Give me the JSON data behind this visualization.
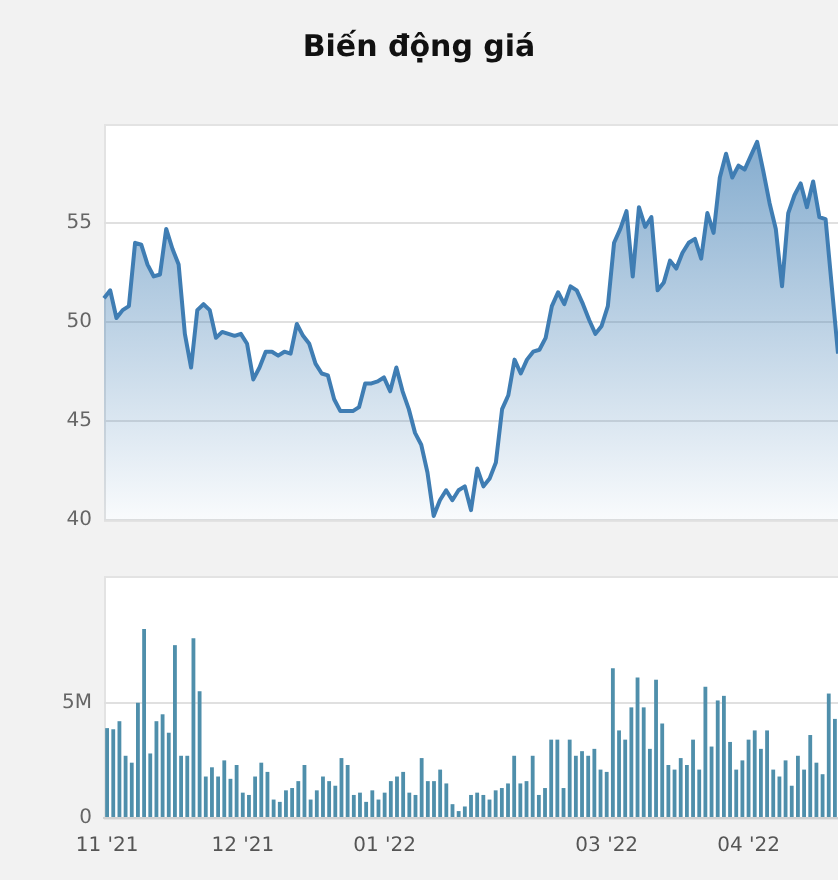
{
  "chart_data": [
    {
      "type": "area",
      "title": "Biến động giá",
      "categories": [
        null,
        null,
        null,
        null,
        null,
        null,
        null,
        null,
        null,
        null,
        null,
        null,
        null,
        null,
        null,
        null,
        null,
        null,
        null,
        null,
        null,
        null,
        null,
        null,
        null,
        null,
        null,
        null,
        null,
        null,
        null,
        null,
        null,
        null,
        null,
        null,
        null,
        null,
        null,
        null,
        null,
        null,
        null,
        null,
        null,
        null,
        null,
        null,
        null,
        null,
        null,
        null,
        null,
        null,
        null,
        null,
        null,
        null,
        null,
        null,
        null,
        null,
        null,
        null,
        null,
        null,
        null,
        null,
        null,
        null,
        null,
        null,
        null,
        null,
        null,
        null,
        null,
        null,
        null,
        null,
        null,
        null,
        null,
        null,
        null,
        null,
        null,
        null,
        null,
        null,
        null,
        null,
        null,
        null,
        null,
        null,
        null,
        null,
        null,
        null,
        null,
        null,
        null,
        null,
        null,
        null,
        null,
        null,
        null,
        null,
        null,
        null,
        null,
        null,
        null,
        null,
        null,
        null,
        null
      ],
      "series": [
        {
          "color": "#3f7db3",
          "values": [
            51.2,
            51.6,
            50.2,
            50.6,
            50.8,
            54.0,
            53.9,
            52.9,
            52.3,
            52.4,
            54.7,
            53.7,
            52.9,
            49.4,
            47.7,
            50.6,
            50.9,
            50.6,
            49.2,
            49.5,
            49.4,
            49.3,
            49.4,
            48.9,
            47.1,
            47.7,
            48.5,
            48.5,
            48.3,
            48.5,
            48.4,
            49.9,
            49.3,
            48.9,
            47.9,
            47.4,
            47.3,
            46.1,
            45.5,
            45.5,
            45.5,
            45.7,
            46.9,
            46.9,
            47.0,
            47.2,
            46.5,
            47.7,
            46.5,
            45.6,
            44.4,
            43.8,
            42.4,
            40.2,
            41.0,
            41.5,
            41.0,
            41.5,
            41.7,
            40.5,
            42.6,
            41.7,
            42.1,
            42.9,
            45.6,
            46.3,
            48.1,
            47.4,
            48.1,
            48.5,
            48.6,
            49.2,
            50.8,
            51.5,
            50.9,
            51.8,
            51.6,
            50.9,
            50.1,
            49.4,
            49.8,
            50.8,
            54.0,
            54.7,
            55.6,
            52.3,
            55.8,
            54.8,
            55.3,
            51.6,
            52.0,
            53.1,
            52.7,
            53.5,
            54.0,
            54.2,
            53.2,
            55.5,
            54.5,
            57.3,
            58.5,
            57.3,
            57.9,
            57.7,
            58.4,
            59.1,
            57.6,
            56.0,
            54.7,
            51.8,
            55.5,
            56.4,
            57.0,
            55.8,
            57.1,
            55.3,
            55.2,
            51.8,
            48.4
          ]
        }
      ],
      "ylim": [
        40,
        60
      ],
      "yticks": [
        40,
        45,
        50,
        55
      ],
      "grid": "y",
      "tick_labels": "y"
    },
    {
      "type": "bar",
      "categories": [
        "11 '21",
        null,
        null,
        null,
        null,
        null,
        null,
        null,
        null,
        null,
        null,
        null,
        null,
        null,
        null,
        null,
        null,
        null,
        null,
        null,
        null,
        null,
        "12 '21",
        null,
        null,
        null,
        null,
        null,
        null,
        null,
        null,
        null,
        null,
        null,
        null,
        null,
        null,
        null,
        null,
        null,
        null,
        null,
        null,
        null,
        null,
        "01 '22",
        null,
        null,
        null,
        null,
        null,
        null,
        null,
        null,
        null,
        null,
        null,
        null,
        null,
        null,
        null,
        null,
        null,
        null,
        null,
        null,
        null,
        null,
        null,
        null,
        null,
        null,
        null,
        null,
        null,
        null,
        null,
        null,
        null,
        null,
        null,
        "03 '22",
        null,
        null,
        null,
        null,
        null,
        null,
        null,
        null,
        null,
        null,
        null,
        null,
        null,
        null,
        null,
        null,
        null,
        null,
        null,
        null,
        null,
        null,
        "04 '22",
        null,
        null,
        null,
        null,
        null,
        null,
        null,
        null,
        null,
        null,
        null,
        null,
        null,
        null
      ],
      "series": [
        {
          "color": "#4f8fab",
          "values": [
            3.9,
            3.85,
            4.2,
            2.7,
            2.4,
            5.0,
            8.2,
            2.8,
            4.2,
            4.5,
            3.7,
            7.5,
            2.7,
            2.7,
            7.8,
            5.5,
            1.8,
            2.2,
            1.8,
            2.5,
            1.7,
            2.3,
            1.1,
            1.0,
            1.8,
            2.4,
            2.0,
            0.8,
            0.7,
            1.2,
            1.3,
            1.6,
            2.3,
            0.8,
            1.2,
            1.8,
            1.6,
            1.4,
            2.6,
            2.3,
            1.0,
            1.1,
            0.7,
            1.2,
            0.8,
            1.1,
            1.6,
            1.8,
            2.0,
            1.1,
            1.0,
            2.6,
            1.6,
            1.6,
            2.1,
            1.5,
            0.6,
            0.3,
            0.5,
            1.0,
            1.1,
            1.0,
            0.8,
            1.2,
            1.3,
            1.5,
            2.7,
            1.5,
            1.6,
            2.7,
            1.0,
            1.3,
            3.4,
            3.4,
            1.3,
            3.4,
            2.7,
            2.9,
            2.7,
            3.0,
            2.1,
            2.0,
            6.5,
            3.8,
            3.4,
            4.8,
            6.1,
            4.8,
            3.0,
            6.0,
            4.1,
            2.3,
            2.1,
            2.6,
            2.3,
            3.4,
            2.1,
            5.7,
            3.1,
            5.1,
            5.3,
            3.3,
            2.1,
            2.5,
            3.4,
            3.8,
            3.0,
            3.8,
            2.1,
            1.8,
            2.5,
            1.4,
            2.7,
            2.1,
            3.6,
            2.4,
            1.9,
            5.4,
            4.3
          ]
        }
      ],
      "ylim": [
        0,
        10.5
      ],
      "yticks": [
        0,
        {
          "value": 5,
          "label": "5M"
        }
      ],
      "grid": "y"
    }
  ]
}
